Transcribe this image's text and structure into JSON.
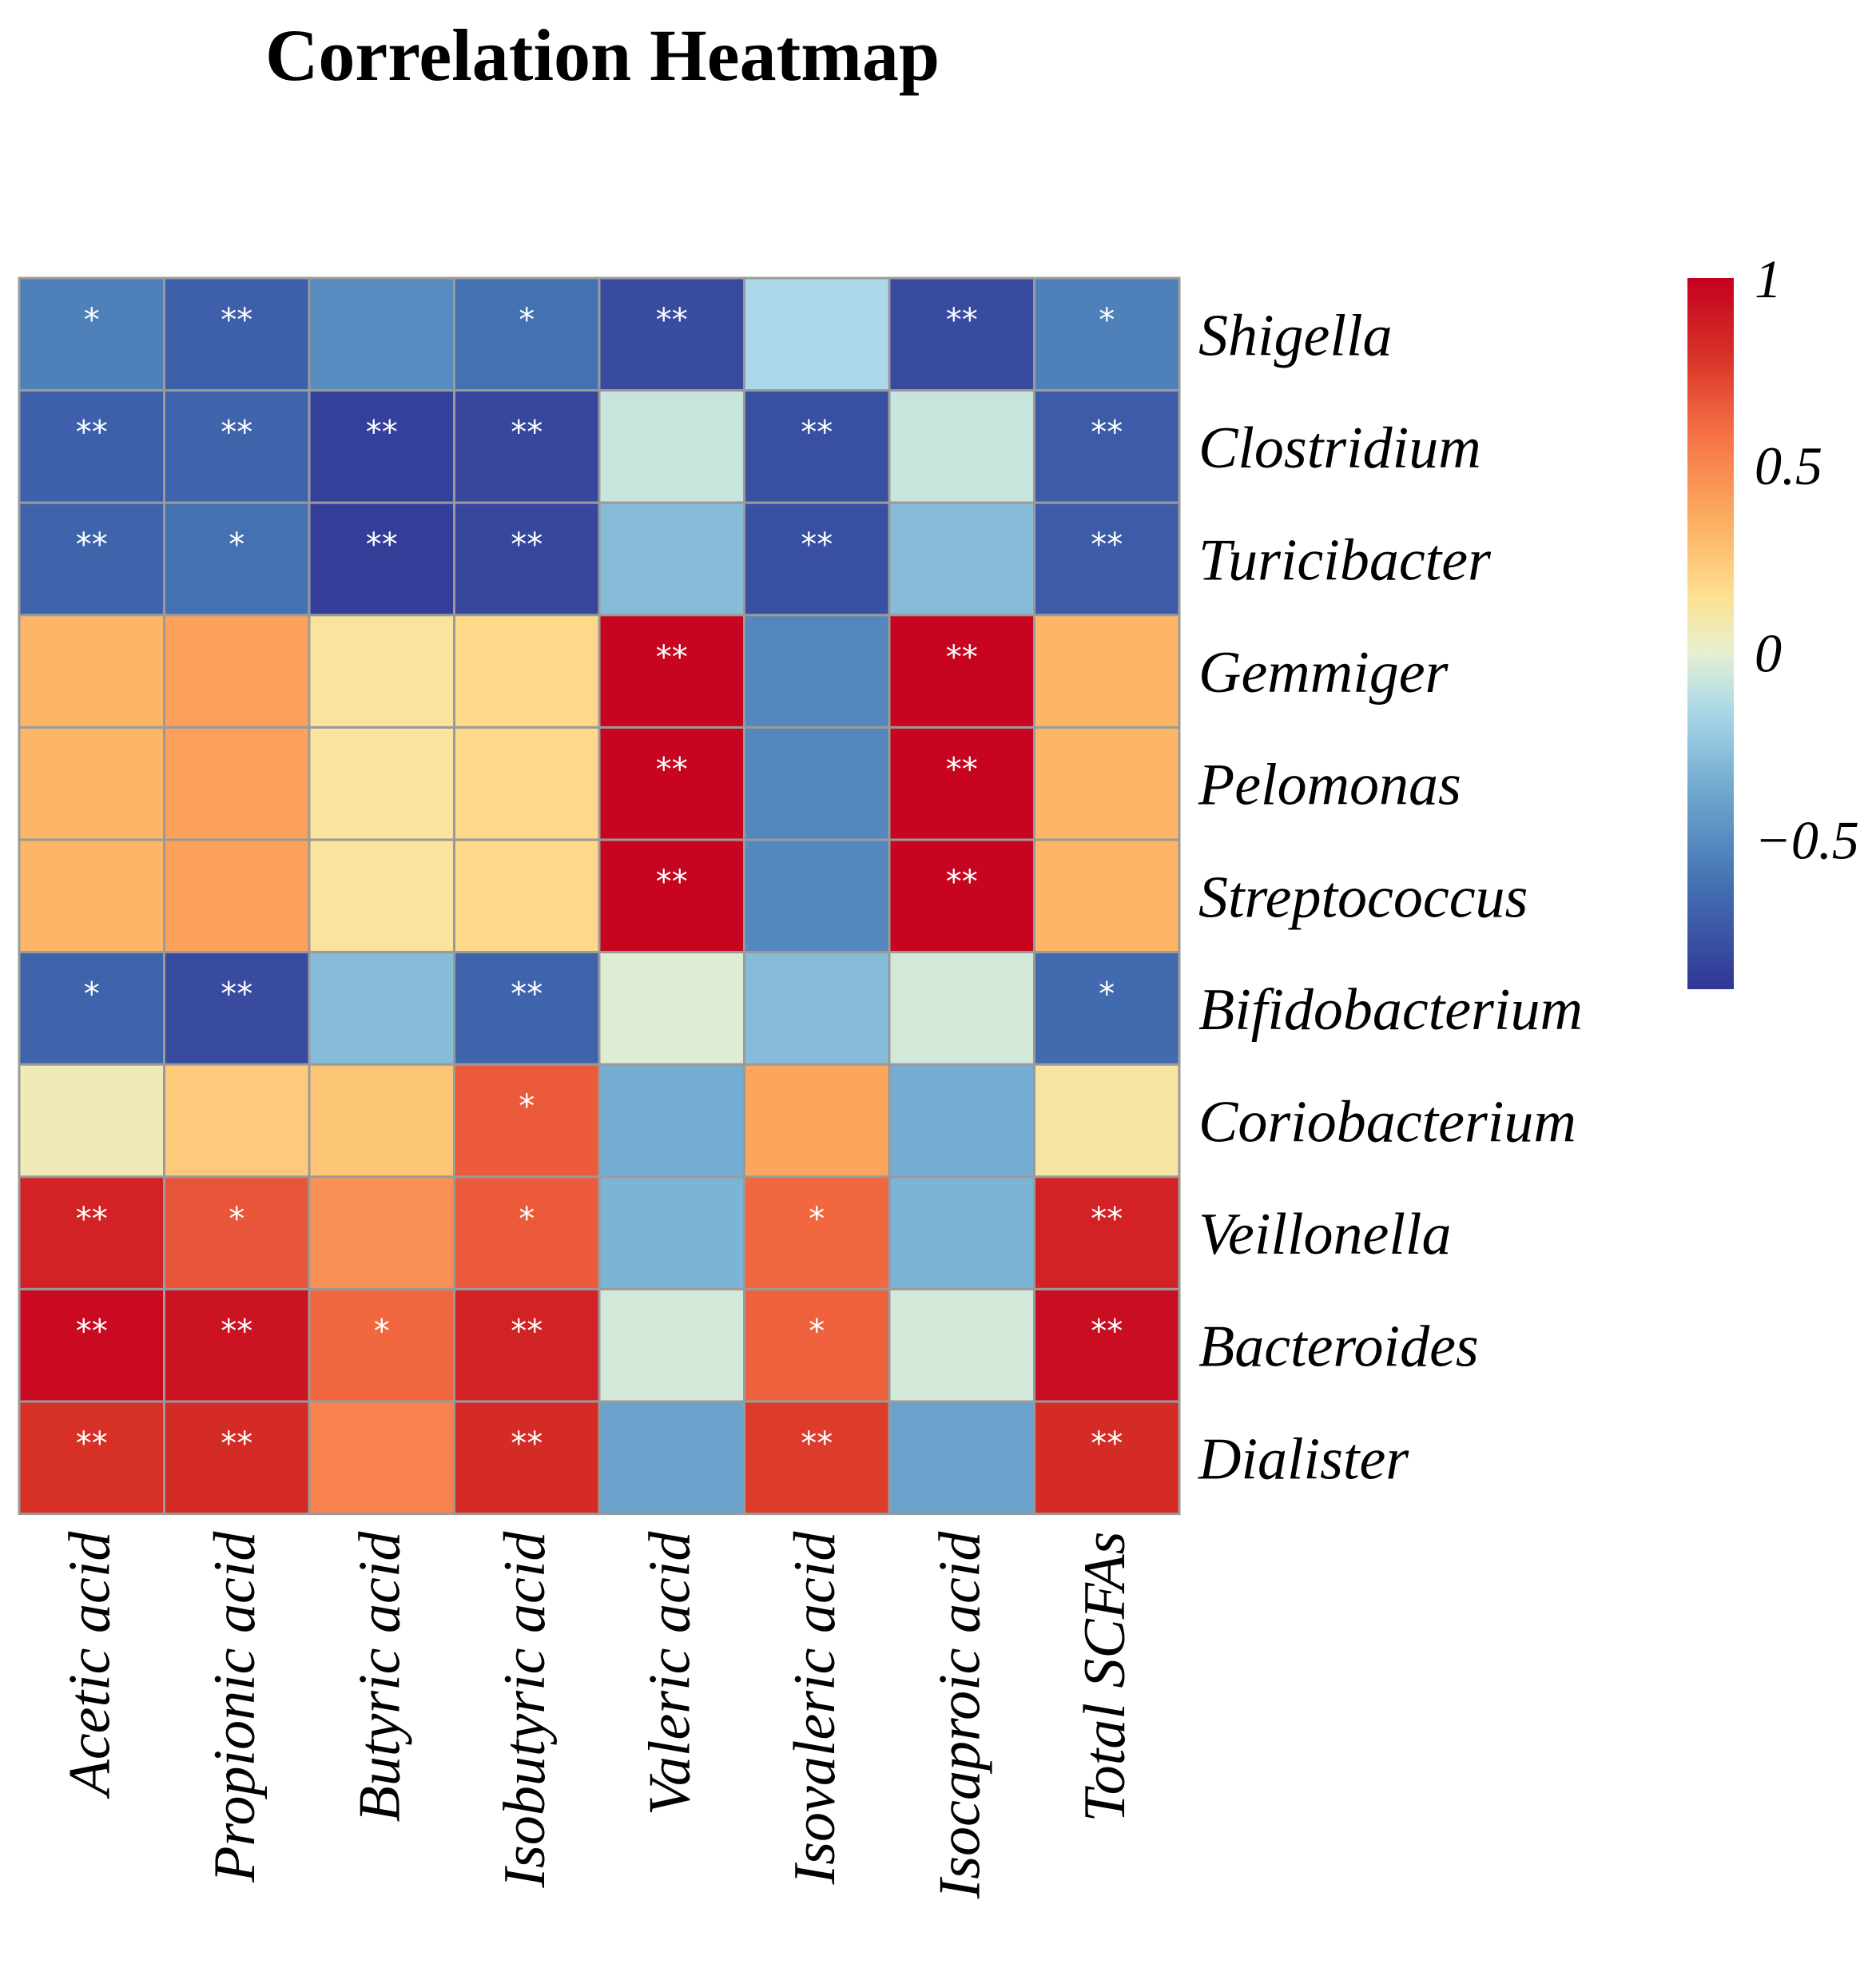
{
  "chart_data": {
    "type": "heatmap",
    "title": "Correlation Heatmap",
    "rows": [
      "Shigella",
      "Clostridium",
      "Turicibacter",
      "Gemmiger",
      "Pelomonas",
      "Streptococcus",
      "Bifidobacterium",
      "Coriobacterium",
      "Veillonella",
      "Bacteroides",
      "Dialister"
    ],
    "columns": [
      "Acetic acid",
      "Propionic acid",
      "Butyric acid",
      "Isobutyric acid",
      "Valeric acid",
      "Isovaleric acid",
      "Isocaproic acid",
      "Total SCFAs"
    ],
    "values": [
      [
        -0.55,
        -0.7,
        -0.5,
        -0.62,
        -0.8,
        -0.15,
        -0.8,
        -0.55
      ],
      [
        -0.7,
        -0.68,
        -0.85,
        -0.82,
        -0.08,
        -0.78,
        -0.08,
        -0.72
      ],
      [
        -0.68,
        -0.62,
        -0.86,
        -0.82,
        -0.28,
        -0.78,
        -0.28,
        -0.72
      ],
      [
        0.32,
        0.4,
        0.12,
        0.18,
        0.98,
        -0.52,
        0.98,
        0.32
      ],
      [
        0.32,
        0.4,
        0.12,
        0.18,
        0.98,
        -0.52,
        0.98,
        0.32
      ],
      [
        0.32,
        0.4,
        0.12,
        0.18,
        0.98,
        -0.52,
        0.98,
        0.32
      ],
      [
        -0.68,
        -0.8,
        -0.28,
        -0.68,
        -0.02,
        -0.28,
        -0.05,
        -0.65
      ],
      [
        0.06,
        0.24,
        0.26,
        0.66,
        -0.35,
        0.38,
        -0.35,
        0.1
      ],
      [
        0.86,
        0.68,
        0.46,
        0.66,
        -0.32,
        0.62,
        -0.32,
        0.86
      ],
      [
        0.96,
        0.92,
        0.62,
        0.86,
        -0.05,
        0.64,
        -0.05,
        0.94
      ],
      [
        0.8,
        0.82,
        0.52,
        0.82,
        -0.4,
        0.76,
        -0.4,
        0.82
      ]
    ],
    "significance": [
      [
        "*",
        "**",
        "",
        "*",
        "**",
        "",
        "**",
        "*"
      ],
      [
        "**",
        "**",
        "**",
        "**",
        "",
        "**",
        "",
        "**"
      ],
      [
        "**",
        "*",
        "**",
        "**",
        "",
        "**",
        "",
        "**"
      ],
      [
        "",
        "",
        "",
        "",
        "**",
        "",
        "**",
        ""
      ],
      [
        "",
        "",
        "",
        "",
        "**",
        "",
        "**",
        ""
      ],
      [
        "",
        "",
        "",
        "",
        "**",
        "",
        "**",
        ""
      ],
      [
        "*",
        "**",
        "",
        "**",
        "",
        "",
        "",
        "*"
      ],
      [
        "",
        "",
        "",
        "*",
        "",
        "",
        "",
        ""
      ],
      [
        "**",
        "*",
        "",
        "*",
        "",
        "*",
        "",
        "**"
      ],
      [
        "**",
        "**",
        "*",
        "**",
        "",
        "*",
        "",
        "**"
      ],
      [
        "**",
        "**",
        "",
        "**",
        "",
        "**",
        "",
        "**"
      ]
    ],
    "legend": {
      "position": "right",
      "range": [
        -0.9,
        1
      ],
      "ticks": [
        1,
        0.5,
        0,
        -0.5
      ],
      "tick_labels": [
        "1",
        "0.5",
        "0",
        "−0.5"
      ],
      "colors": {
        "low": "#313695",
        "mid_low": "#4575b4",
        "neutral": "#e6f0d0",
        "mid_high": "#fdae61",
        "high": "#c5001f"
      }
    }
  }
}
